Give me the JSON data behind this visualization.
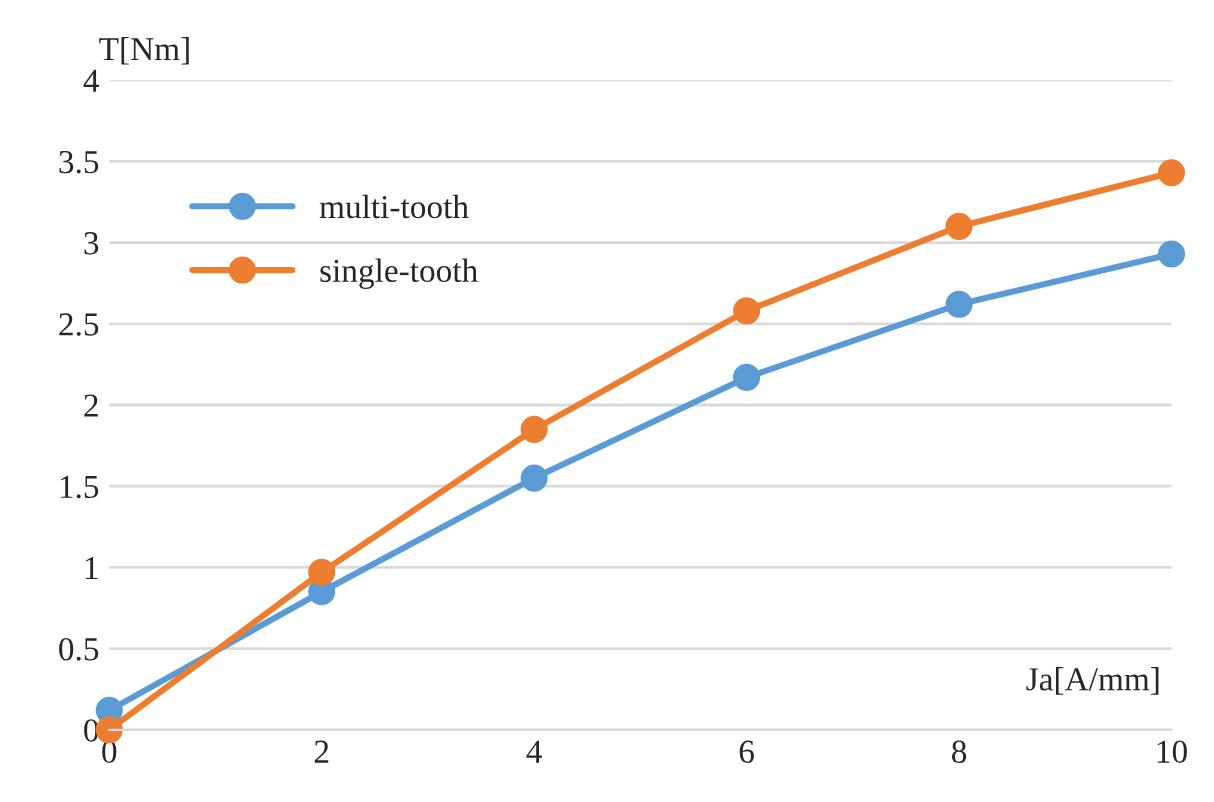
{
  "chart_data": {
    "type": "line",
    "xlabel": "Ja[A/mm]",
    "ylabel": "T[Nm]",
    "x": [
      0,
      2,
      4,
      6,
      8,
      10
    ],
    "series": [
      {
        "name": "multi-tooth",
        "color": "#5b9bd5",
        "values": [
          0.12,
          0.85,
          1.55,
          2.17,
          2.62,
          2.93
        ]
      },
      {
        "name": "single-tooth",
        "color": "#ed7d31",
        "values": [
          0,
          0.97,
          1.85,
          2.58,
          3.1,
          3.43
        ]
      }
    ],
    "xlim": [
      0,
      10
    ],
    "xticks": [
      0,
      2,
      4,
      6,
      8,
      10
    ],
    "ylim": [
      0,
      4
    ],
    "yticks": [
      0,
      0.5,
      1,
      1.5,
      2,
      2.5,
      3,
      3.5,
      4
    ],
    "grid": "y",
    "legend": "top left",
    "marker": "circle",
    "line_style": "solid"
  }
}
